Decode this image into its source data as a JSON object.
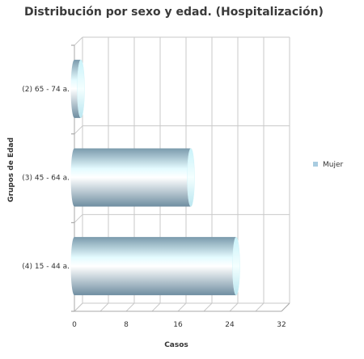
{
  "chart_data": {
    "type": "bar",
    "orientation": "horizontal",
    "title": "Distribución por sexo y edad. (Hospitalización)",
    "xlabel": "Casos",
    "ylabel": "Grupos de Edad",
    "categories": [
      "(2) 65 - 74 a.",
      "(3) 45 - 64 a.",
      "(4) 15 - 44 a."
    ],
    "series": [
      {
        "name": "Mujer",
        "values": [
          1,
          18,
          25
        ],
        "color": "#a9cce0"
      }
    ],
    "xlim": [
      0,
      32
    ],
    "xticks": [
      0,
      8,
      16,
      24,
      32
    ],
    "grid": true,
    "legend_position": "right",
    "style": "3d-cylinder"
  }
}
